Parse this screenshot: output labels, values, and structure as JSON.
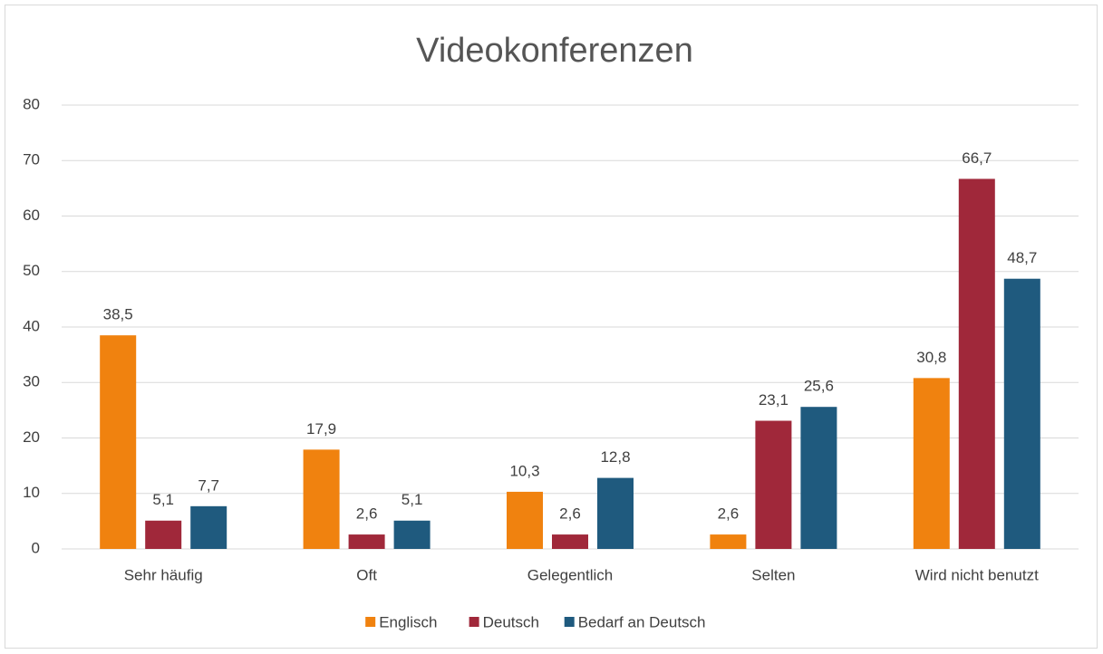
{
  "chart_data": {
    "type": "bar",
    "title": "Videokonferenzen",
    "categories": [
      "Sehr häufig",
      "Oft",
      "Gelegentlich",
      "Selten",
      "Wird nicht benutzt"
    ],
    "series": [
      {
        "name": "Englisch",
        "color": "#f0820f",
        "values": [
          38.5,
          17.9,
          10.3,
          2.6,
          30.8
        ],
        "value_labels": [
          "38,5",
          "17,9",
          "10,3",
          "2,6",
          "30,8"
        ]
      },
      {
        "name": "Deutsch",
        "color": "#a0283a",
        "values": [
          5.1,
          2.6,
          2.6,
          23.1,
          66.7
        ],
        "value_labels": [
          "5,1",
          "2,6",
          "2,6",
          "23,1",
          "66,7"
        ]
      },
      {
        "name": "Bedarf an Deutsch",
        "color": "#1f5a7e",
        "values": [
          7.7,
          5.1,
          12.8,
          25.6,
          48.7
        ],
        "value_labels": [
          "7,7",
          "5,1",
          "12,8",
          "25,6",
          "48,7"
        ]
      }
    ],
    "ylim": [
      0,
      80
    ],
    "yticks": [
      0,
      10,
      20,
      30,
      40,
      50,
      60,
      70,
      80
    ],
    "grid": true,
    "legend": "bottom"
  }
}
